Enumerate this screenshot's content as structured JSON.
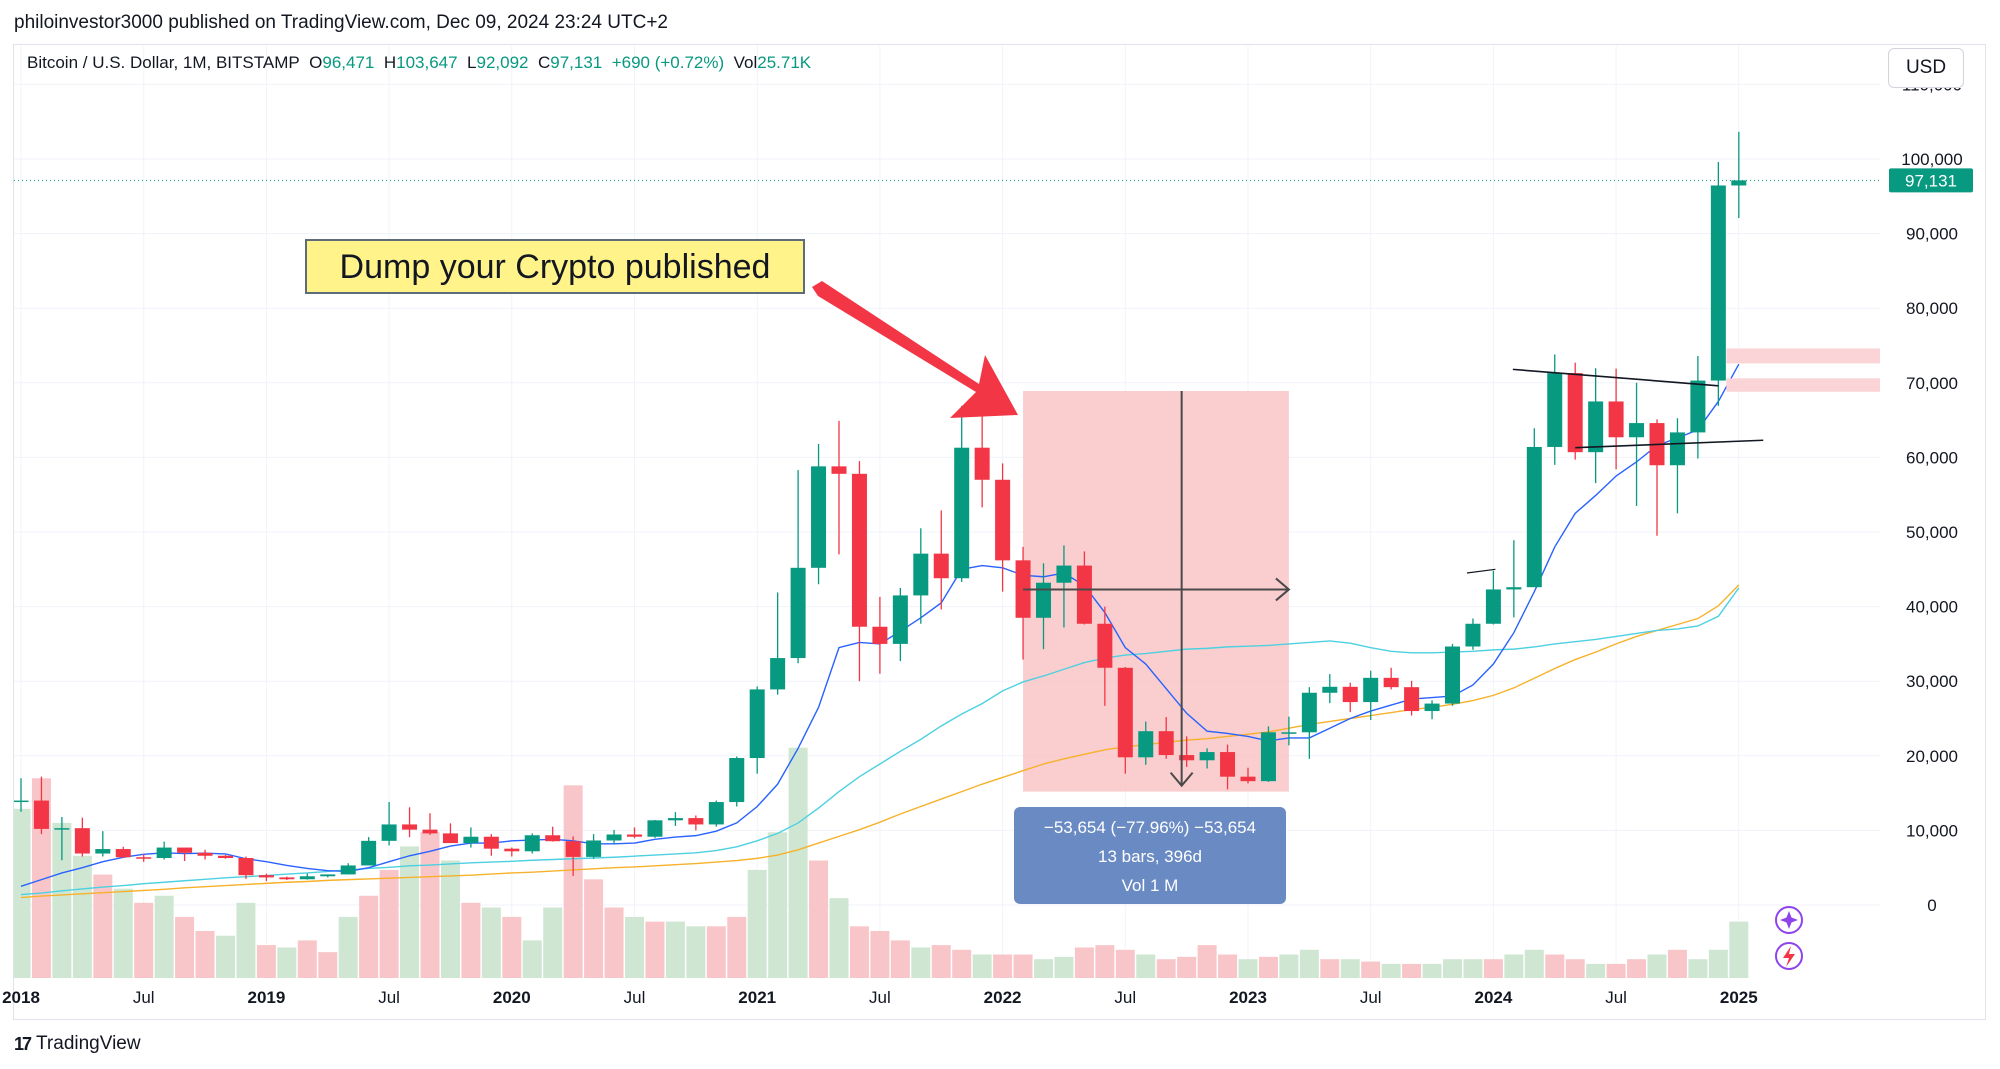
{
  "header": {
    "text": "philoinvestor3000 published on TradingView.com, Dec 09, 2024 23:24 UTC+2"
  },
  "legend": {
    "symbol": "Bitcoin / U.S. Dollar, 1M, BITSTAMP",
    "o_label": "O",
    "o_value": "96,471",
    "h_label": "H",
    "h_value": "103,647",
    "l_label": "L",
    "l_value": "92,092",
    "c_label": "C",
    "c_value": "97,131",
    "change": "+690 (+0.72%)",
    "vol_label": "Vol",
    "vol_value": "25.71K"
  },
  "currency_button": "USD",
  "price_tag": "97,131",
  "annotation": "Dump your Crypto published",
  "measure_box": {
    "line1": "−53,654 (−77.96%) −53,654",
    "line2": "13 bars, 396d",
    "line3": "Vol 1 M"
  },
  "footer": {
    "brand": "TradingView",
    "mark": "17"
  },
  "colors": {
    "up": "#089981",
    "down": "#f23645",
    "ma_blue": "#2962ff",
    "ma_cyan": "#4dd0e1",
    "ma_orange": "#f7b12a",
    "vol_up": "#cfe6d3",
    "vol_down": "#f8c6c8",
    "measure_fill": "#f9c4c6",
    "tooltip_bg": "#6a8ac4",
    "annotation_bg": "#fff38a",
    "arrow": "#f23645"
  },
  "chart_data": {
    "type": "candlestick",
    "title": "Bitcoin / U.S. Dollar, 1M, BITSTAMP",
    "x_ticks": [
      "2018",
      "Jul",
      "2019",
      "Jul",
      "2020",
      "Jul",
      "2021",
      "Jul",
      "2022",
      "Jul",
      "2023",
      "Jul",
      "2024",
      "Jul",
      "2025"
    ],
    "y_ticks": [
      "0",
      "10,000",
      "20,000",
      "30,000",
      "40,000",
      "50,000",
      "60,000",
      "70,000",
      "80,000",
      "90,000",
      "100,000",
      "110,000"
    ],
    "ylim": [
      -9500,
      111000
    ],
    "last_price": 97131,
    "candles": [
      [
        13880,
        17000,
        12500,
        14000
      ],
      [
        14000,
        17200,
        9500,
        10200
      ],
      [
        10200,
        11800,
        6000,
        10300
      ],
      [
        10300,
        11700,
        6500,
        6900
      ],
      [
        6900,
        9900,
        6500,
        7500
      ],
      [
        7500,
        7800,
        6300,
        6400
      ],
      [
        6400,
        6800,
        5800,
        6300
      ],
      [
        6300,
        8500,
        6100,
        7700
      ],
      [
        7700,
        7700,
        5900,
        7000
      ],
      [
        7000,
        7400,
        6100,
        6600
      ],
      [
        6600,
        6700,
        6200,
        6300
      ],
      [
        6300,
        6500,
        3500,
        4000
      ],
      [
        4000,
        4200,
        3200,
        3700
      ],
      [
        3700,
        3800,
        3350,
        3450
      ],
      [
        3450,
        4200,
        3400,
        3850
      ],
      [
        3850,
        4100,
        3700,
        4100
      ],
      [
        4100,
        5600,
        4100,
        5300
      ],
      [
        5300,
        9100,
        5300,
        8600
      ],
      [
        8600,
        13800,
        8000,
        10800
      ],
      [
        10800,
        13100,
        9100,
        10100
      ],
      [
        10100,
        12300,
        9400,
        9600
      ],
      [
        9600,
        10950,
        9300,
        8300
      ],
      [
        8300,
        10400,
        7700,
        9150
      ],
      [
        9150,
        9500,
        6600,
        7550
      ],
      [
        7550,
        7700,
        6500,
        7200
      ],
      [
        7200,
        9600,
        6900,
        9350
      ],
      [
        9350,
        10500,
        8500,
        8550
      ],
      [
        8550,
        9200,
        3900,
        6450
      ],
      [
        6450,
        9500,
        6200,
        8650
      ],
      [
        8650,
        10050,
        8100,
        9450
      ],
      [
        9450,
        10400,
        8950,
        9150
      ],
      [
        9150,
        11400,
        9000,
        11350
      ],
      [
        11350,
        12450,
        10600,
        11650
      ],
      [
        11650,
        12000,
        10000,
        10800
      ],
      [
        10800,
        14000,
        10500,
        13800
      ],
      [
        13800,
        19900,
        13200,
        19700
      ],
      [
        19700,
        29300,
        17600,
        28900
      ],
      [
        28900,
        41900,
        28200,
        33100
      ],
      [
        33100,
        58300,
        32400,
        45200
      ],
      [
        45200,
        61800,
        43000,
        58800
      ],
      [
        58800,
        64900,
        47000,
        57800
      ],
      [
        57800,
        59500,
        30000,
        37300
      ],
      [
        37300,
        41300,
        31000,
        35000
      ],
      [
        35000,
        42500,
        32700,
        41500
      ],
      [
        41500,
        50500,
        37700,
        47100
      ],
      [
        47100,
        52900,
        39600,
        43800
      ],
      [
        43800,
        66900,
        43300,
        61300
      ],
      [
        61300,
        69000,
        53300,
        57000
      ],
      [
        57000,
        59200,
        42000,
        46200
      ],
      [
        46200,
        48000,
        32900,
        38500
      ],
      [
        38500,
        45800,
        34300,
        43200
      ],
      [
        43200,
        48200,
        37200,
        45500
      ],
      [
        45500,
        47400,
        37600,
        37700
      ],
      [
        37700,
        40000,
        26700,
        31800
      ],
      [
        31800,
        31900,
        17600,
        19800
      ],
      [
        19800,
        24600,
        18800,
        23300
      ],
      [
        23300,
        25200,
        19600,
        20100
      ],
      [
        20100,
        22600,
        18500,
        19400
      ],
      [
        19400,
        21000,
        18300,
        20500
      ],
      [
        20500,
        21500,
        15500,
        17200
      ],
      [
        17200,
        18400,
        16300,
        16600
      ],
      [
        16600,
        23950,
        16500,
        23150
      ],
      [
        23150,
        25250,
        21400,
        23150
      ],
      [
        23150,
        29200,
        19600,
        28450
      ],
      [
        28450,
        30950,
        27050,
        29250
      ],
      [
        29250,
        29800,
        25850,
        27200
      ],
      [
        27200,
        31400,
        24800,
        30450
      ],
      [
        30450,
        31800,
        28900,
        29200
      ],
      [
        29200,
        30050,
        25400,
        26000
      ],
      [
        26000,
        27450,
        24900,
        27000
      ],
      [
        27000,
        35000,
        26700,
        34650
      ],
      [
        34650,
        38400,
        34200,
        37700
      ],
      [
        37700,
        44800,
        37600,
        42300
      ],
      [
        42300,
        48900,
        38550,
        42600
      ],
      [
        42600,
        63900,
        42800,
        61400
      ],
      [
        61400,
        73800,
        59000,
        71300
      ],
      [
        71300,
        72700,
        59700,
        60700
      ],
      [
        60700,
        71950,
        56550,
        67500
      ],
      [
        67500,
        71900,
        58400,
        62700
      ],
      [
        62700,
        70000,
        53500,
        64600
      ],
      [
        64600,
        65100,
        49500,
        58950
      ],
      [
        58950,
        65250,
        52500,
        63350
      ],
      [
        63350,
        73600,
        59850,
        70300
      ],
      [
        70300,
        99600,
        66900,
        96450
      ],
      [
        96450,
        103647,
        92092,
        97131
      ]
    ],
    "volume": [
      [
        1,
        0.72
      ],
      [
        0,
        0.85
      ],
      [
        1,
        0.66
      ],
      [
        1,
        0.52
      ],
      [
        0,
        0.44
      ],
      [
        1,
        0.38
      ],
      [
        0,
        0.32
      ],
      [
        1,
        0.35
      ],
      [
        0,
        0.26
      ],
      [
        0,
        0.2
      ],
      [
        1,
        0.18
      ],
      [
        1,
        0.32
      ],
      [
        0,
        0.14
      ],
      [
        1,
        0.13
      ],
      [
        0,
        0.16
      ],
      [
        0,
        0.11
      ],
      [
        1,
        0.26
      ],
      [
        0,
        0.35
      ],
      [
        0,
        0.46
      ],
      [
        1,
        0.56
      ],
      [
        0,
        0.62
      ],
      [
        1,
        0.5
      ],
      [
        0,
        0.32
      ],
      [
        1,
        0.3
      ],
      [
        0,
        0.26
      ],
      [
        1,
        0.16
      ],
      [
        1,
        0.3
      ],
      [
        0,
        0.82
      ],
      [
        0,
        0.42
      ],
      [
        0,
        0.3
      ],
      [
        1,
        0.26
      ],
      [
        0,
        0.24
      ],
      [
        1,
        0.24
      ],
      [
        1,
        0.22
      ],
      [
        0,
        0.22
      ],
      [
        0,
        0.26
      ],
      [
        1,
        0.46
      ],
      [
        1,
        0.62
      ],
      [
        1,
        0.98
      ],
      [
        0,
        0.5
      ],
      [
        1,
        0.34
      ],
      [
        0,
        0.22
      ],
      [
        0,
        0.2
      ],
      [
        0,
        0.16
      ],
      [
        1,
        0.13
      ],
      [
        0,
        0.14
      ],
      [
        0,
        0.12
      ],
      [
        1,
        0.1
      ],
      [
        0,
        0.1
      ],
      [
        0,
        0.1
      ],
      [
        1,
        0.08
      ],
      [
        1,
        0.09
      ],
      [
        0,
        0.13
      ],
      [
        0,
        0.14
      ],
      [
        0,
        0.12
      ],
      [
        1,
        0.1
      ],
      [
        0,
        0.08
      ],
      [
        0,
        0.09
      ],
      [
        0,
        0.14
      ],
      [
        0,
        0.1
      ],
      [
        1,
        0.08
      ],
      [
        0,
        0.09
      ],
      [
        1,
        0.1
      ],
      [
        1,
        0.12
      ],
      [
        0,
        0.08
      ],
      [
        1,
        0.08
      ],
      [
        0,
        0.07
      ],
      [
        1,
        0.06
      ],
      [
        0,
        0.06
      ],
      [
        1,
        0.06
      ],
      [
        1,
        0.08
      ],
      [
        1,
        0.08
      ],
      [
        0,
        0.08
      ],
      [
        1,
        0.1
      ],
      [
        1,
        0.12
      ],
      [
        0,
        0.1
      ],
      [
        0,
        0.08
      ],
      [
        1,
        0.06
      ],
      [
        0,
        0.06
      ],
      [
        0,
        0.08
      ],
      [
        1,
        0.1
      ],
      [
        0,
        0.12
      ],
      [
        1,
        0.08
      ],
      [
        1,
        0.12
      ],
      [
        1,
        0.24
      ]
    ],
    "ma_fast": [
      2500,
      3400,
      4300,
      5000,
      5800,
      6400,
      6800,
      7000,
      6900,
      6950,
      6850,
      6200,
      5800,
      5300,
      4900,
      4600,
      4500,
      5000,
      5800,
      6600,
      7200,
      7900,
      8300,
      8300,
      8600,
      8700,
      8800,
      8600,
      8200,
      8200,
      8300,
      8800,
      9100,
      9300,
      9900,
      11000,
      13200,
      16200,
      21000,
      26500,
      34500,
      35200,
      35000,
      36700,
      38500,
      40500,
      45000,
      45500,
      45200,
      44200,
      44000,
      44500,
      42800,
      39200,
      34500,
      32300,
      29000,
      25700,
      23300,
      23000,
      22600,
      22000,
      22400,
      22400,
      23700,
      25000,
      26000,
      26800,
      27600,
      27800,
      28000,
      29500,
      32300,
      36500,
      42000,
      48000,
      52500,
      54900,
      57500,
      59400,
      61600,
      62600,
      63700,
      67500,
      72500
    ],
    "ma_slow": [
      1400,
      1600,
      1900,
      2150,
      2400,
      2600,
      2850,
      3050,
      3250,
      3450,
      3650,
      3800,
      3950,
      4150,
      4300,
      4500,
      4700,
      4900,
      5050,
      5250,
      5350,
      5500,
      5650,
      5750,
      5850,
      6000,
      6100,
      6200,
      6300,
      6400,
      6550,
      6700,
      6850,
      7000,
      7300,
      7800,
      8600,
      9600,
      11000,
      13000,
      15200,
      17200,
      18900,
      20600,
      22200,
      24000,
      25600,
      27000,
      28700,
      29900,
      30700,
      31600,
      32500,
      33100,
      33500,
      33700,
      34000,
      34300,
      34400,
      34600,
      34700,
      34800,
      35000,
      35200,
      35400,
      35100,
      34500,
      34000,
      33800,
      33800,
      33900,
      34000,
      34200,
      34300,
      34600,
      35000,
      35300,
      35600,
      36000,
      36400,
      36800,
      37000,
      37400,
      38700,
      42500
    ],
    "ma_long": [
      1000,
      1200,
      1350,
      1500,
      1650,
      1800,
      1950,
      2100,
      2300,
      2450,
      2600,
      2750,
      2900,
      3050,
      3150,
      3300,
      3400,
      3500,
      3600,
      3700,
      3800,
      3900,
      4000,
      4150,
      4300,
      4400,
      4550,
      4700,
      4850,
      5000,
      5100,
      5250,
      5400,
      5550,
      5750,
      5950,
      6250,
      6700,
      7400,
      8300,
      9200,
      10100,
      11100,
      12200,
      13200,
      14200,
      15200,
      16200,
      17100,
      18000,
      18900,
      19600,
      20200,
      20800,
      21200,
      21500,
      21800,
      22100,
      22300,
      22600,
      22900,
      23200,
      23700,
      24200,
      24600,
      25000,
      25400,
      25800,
      26200,
      26500,
      26900,
      27400,
      28100,
      29100,
      30400,
      31700,
      32900,
      33900,
      35000,
      36000,
      36800,
      37600,
      38400,
      40100,
      42900
    ]
  }
}
